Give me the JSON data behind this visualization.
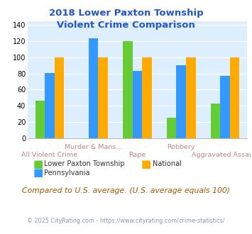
{
  "title": "2018 Lower Paxton Township\nViolent Crime Comparison",
  "categories": [
    "All Violent Crime",
    "Murder & Mans...",
    "Rape",
    "Robbery",
    "Aggravated Assault"
  ],
  "series": {
    "Lower Paxton Township": [
      46,
      0,
      120,
      25,
      43
    ],
    "Pennsylvania": [
      81,
      124,
      83,
      90,
      77
    ],
    "National": [
      100,
      100,
      100,
      100,
      100
    ]
  },
  "bar_order": [
    "Lower Paxton Township",
    "Pennsylvania",
    "National"
  ],
  "colors": {
    "Lower Paxton Township": "#66cc33",
    "Pennsylvania": "#3399ff",
    "National": "#ffaa00"
  },
  "ylim": [
    0,
    145
  ],
  "yticks": [
    0,
    20,
    40,
    60,
    80,
    100,
    120,
    140
  ],
  "xlabel_color": "#bb8888",
  "title_color": "#2255cc",
  "plot_bg": "#ddeeff",
  "bar_width": 0.22,
  "footer_text": "Compared to U.S. average. (U.S. average equals 100)",
  "footer_color": "#aa5500",
  "copyright_text": "© 2025 CityRating.com - https://www.cityrating.com/crime-statistics/",
  "copyright_color": "#8899aa",
  "legend": [
    {
      "label": "Lower Paxton Township",
      "color": "#66cc33"
    },
    {
      "label": "National",
      "color": "#ffaa00"
    },
    {
      "label": "Pennsylvania",
      "color": "#3399ff"
    }
  ]
}
